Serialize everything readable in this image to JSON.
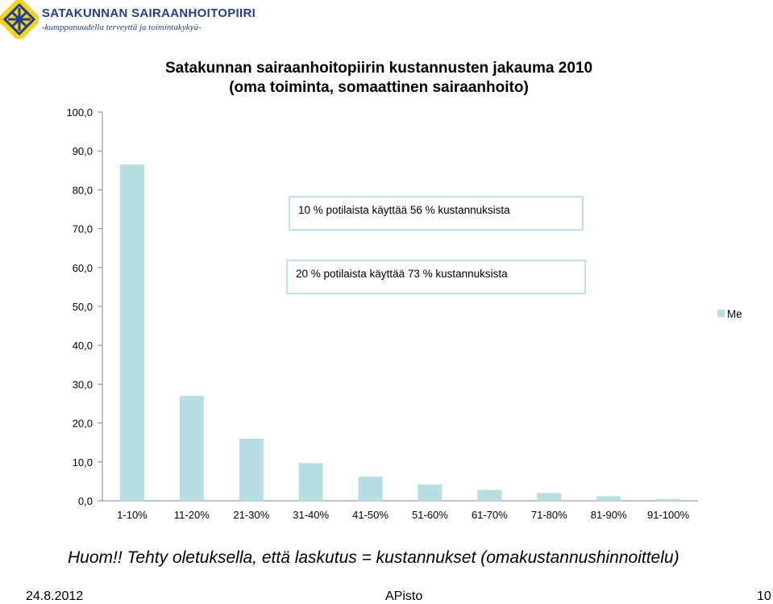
{
  "logo": {
    "name": "SATAKUNNAN SAIRAANHOITOPIIRI",
    "tagline": "-kumppanuudella terveyttä ja toimintakykyä-"
  },
  "chart_data": {
    "type": "bar",
    "title_lines": [
      "Satakunnan sairaanhoitopiirin kustannusten jakauma 2010",
      "(oma toiminta, somaattinen sairaanhoito)"
    ],
    "categories": [
      "1-10%",
      "11-20%",
      "21-30%",
      "31-40%",
      "41-50%",
      "51-60%",
      "61-70%",
      "71-80%",
      "81-90%",
      "91-100%"
    ],
    "series": [
      {
        "name": "Me",
        "values": [
          86.5,
          27.0,
          16.0,
          9.7,
          6.2,
          4.2,
          2.8,
          2.0,
          1.2,
          0.5
        ]
      }
    ],
    "yticks": [
      "0,0",
      "10,0",
      "20,0",
      "30,0",
      "40,0",
      "50,0",
      "60,0",
      "70,0",
      "80,0",
      "90,0",
      "100,0"
    ],
    "ylim": [
      0,
      100
    ],
    "grid": false,
    "legend_position": "right",
    "annotations": [
      "10 % potilaista käyttää 56 % kustannuksista",
      "20 % potilaista käyttää 73 % kustannuksista"
    ],
    "colors": {
      "bar": "#b7dfe3",
      "annotation_border": "#a9dbe6"
    }
  },
  "note": "Huom!! Tehty oletuksella, että laskutus = kustannukset (omakustannushinnoittelu)",
  "footer": {
    "date": "24.8.2012",
    "author": "APisto",
    "page": "10"
  }
}
